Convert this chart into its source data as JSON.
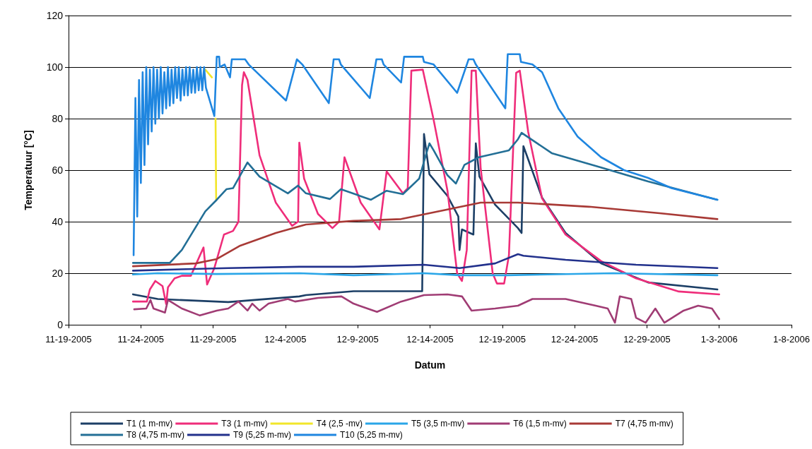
{
  "chart_data": {
    "type": "line",
    "xlabel": "Datum",
    "ylabel": "Temperatuur [°C]",
    "xlim": [
      "2005-11-19",
      "2006-01-08"
    ],
    "xticks": [
      {
        "value": "2005-11-19",
        "label": "11-19-2005"
      },
      {
        "value": "2005-11-24",
        "label": "11-24-2005"
      },
      {
        "value": "2005-11-29",
        "label": "11-29-2005"
      },
      {
        "value": "2005-12-04",
        "label": "12-4-2005"
      },
      {
        "value": "2005-12-09",
        "label": "12-9-2005"
      },
      {
        "value": "2005-12-14",
        "label": "12-14-2005"
      },
      {
        "value": "2005-12-19",
        "label": "12-19-2005"
      },
      {
        "value": "2005-12-24",
        "label": "12-24-2005"
      },
      {
        "value": "2005-12-29",
        "label": "12-29-2005"
      },
      {
        "value": "2006-01-03",
        "label": "1-3-2006"
      },
      {
        "value": "2006-01-08",
        "label": "1-8-2006"
      }
    ],
    "ylim": [
      0,
      120
    ],
    "yticks": [
      0,
      20,
      40,
      60,
      80,
      100,
      120
    ],
    "grid": "y",
    "legend": "bottom",
    "marker": "none",
    "line_style": "solid",
    "series": [
      {
        "name": "T1 (1 m-mv)",
        "color": "#1c3f66",
        "x": [
          "2005-11-23T11:00",
          "2005-11-25T04:00",
          "2005-11-30T01:00",
          "2005-12-04T23:00",
          "2005-12-05T10:00",
          "2005-12-08T17:00",
          "2005-12-13T11:00",
          "2005-12-13T14:00",
          "2005-12-13T23:00",
          "2005-12-15T05:00",
          "2005-12-15T23:00",
          "2005-12-16T01:00",
          "2005-12-16T05:00",
          "2005-12-17T00:00",
          "2005-12-17T04:00",
          "2005-12-17T10:00",
          "2005-12-18T12:00",
          "2005-12-20T02:00",
          "2005-12-20T08:00",
          "2005-12-20T11:00",
          "2005-12-21T18:00",
          "2005-12-23T09:00",
          "2005-12-25T20:00",
          "2005-12-29T02:00",
          "2006-01-02T21:00"
        ],
        "values": [
          11.8,
          10,
          8.8,
          11,
          11.5,
          13,
          13,
          74,
          58.4,
          50,
          42,
          29,
          37,
          35,
          70.4,
          57.5,
          46.6,
          37.5,
          35.6,
          69.3,
          49.3,
          35.6,
          23.8,
          16.4,
          13.7
        ]
      },
      {
        "name": "T3 (1 m-mv)",
        "color": "#ef2d7a",
        "x": [
          "2005-11-23T11:00",
          "2005-11-24T10:00",
          "2005-11-24T15:00",
          "2005-11-25T00:00",
          "2005-11-25T12:00",
          "2005-11-25T18:00",
          "2005-11-25T21:00",
          "2005-11-26T08:00",
          "2005-11-26T20:00",
          "2005-11-27T11:00",
          "2005-11-28T08:00",
          "2005-11-28T14:00",
          "2005-11-29T02:00",
          "2005-11-29T18:00",
          "2005-11-30T09:00",
          "2005-11-30T18:00",
          "2005-12-01T00:00",
          "2005-12-01T03:00",
          "2005-12-01T09:00",
          "2005-12-02T05:00",
          "2005-12-03T08:00",
          "2005-12-04T11:00",
          "2005-12-04T21:00",
          "2005-12-04T23:00",
          "2005-12-05T07:00",
          "2005-12-06T06:00",
          "2005-12-07T06:00",
          "2005-12-07T17:00",
          "2005-12-08T02:00",
          "2005-12-09T05:00",
          "2005-12-10T12:00",
          "2005-12-11T00:00",
          "2005-12-12T03:00",
          "2005-12-12T11:00",
          "2005-12-12T17:00",
          "2005-12-13T12:00",
          "2005-12-14T06:00",
          "2005-12-15T05:00",
          "2005-12-15T21:00",
          "2005-12-16T05:00",
          "2005-12-16T13:00",
          "2005-12-16T21:00",
          "2005-12-17T04:00",
          "2005-12-17T12:00",
          "2005-12-18T08:00",
          "2005-12-18T15:00",
          "2005-12-19T03:00",
          "2005-12-19T11:00",
          "2005-12-19T23:00",
          "2005-12-20T05:00",
          "2005-12-20T19:00",
          "2005-12-21T18:00",
          "2005-12-23T09:00",
          "2005-12-25T20:00",
          "2005-12-28T06:00",
          "2005-12-31T05:00",
          "2006-01-03T00:00"
        ],
        "values": [
          9,
          9,
          13.7,
          17,
          15,
          8,
          14.5,
          18,
          19,
          19,
          30,
          15.6,
          22,
          35,
          36.4,
          40,
          93,
          98,
          95,
          65.8,
          47.4,
          38.4,
          40,
          70.7,
          56.7,
          43,
          37.5,
          40,
          65,
          47.4,
          37,
          59.5,
          51,
          53,
          98.6,
          99,
          79.5,
          52,
          20,
          17,
          29,
          98.6,
          98.6,
          61,
          20,
          16,
          16,
          27,
          97.8,
          98.6,
          74.8,
          49,
          35,
          24.7,
          18,
          12.9,
          11.8
        ]
      },
      {
        "name": "T4 (2,5 -mv)",
        "color": "#f2e62a",
        "x": [
          "2005-11-28T11:00",
          "2005-11-28T22:00",
          "2005-11-29T00:00",
          "2005-11-29T04:00",
          "2005-11-29T05:00"
        ],
        "values": [
          99,
          96,
          null,
          80,
          48.5
        ]
      },
      {
        "name": "T5 (3,5 m-mv)",
        "color": "#2aa6e8",
        "x": [
          "2005-11-23T11:00",
          "2005-11-25T04:00",
          "2005-11-29T06:00",
          "2005-12-04T23:00",
          "2005-12-08T17:00",
          "2005-12-13T14:00",
          "2005-12-16T01:00",
          "2005-12-19T08:00",
          "2005-12-26T16:00",
          "2006-01-02T21:00"
        ],
        "values": [
          19.5,
          20,
          19.7,
          20,
          19.2,
          20,
          19.2,
          19.2,
          20,
          19.2
        ]
      },
      {
        "name": "T6 (1,5 m-mv)",
        "color": "#a03c74",
        "x": [
          "2005-11-23T13:00",
          "2005-11-24T09:00",
          "2005-11-24T16:00",
          "2005-11-24T21:00",
          "2005-11-25T16:00",
          "2005-11-25T21:00",
          "2005-11-26T20:00",
          "2005-11-28T02:00",
          "2005-11-29T06:00",
          "2005-11-30T01:00",
          "2005-11-30T18:00",
          "2005-12-01T09:00",
          "2005-12-01T17:00",
          "2005-12-02T05:00",
          "2005-12-02T20:00",
          "2005-12-04T04:00",
          "2005-12-04T16:00",
          "2005-12-06T06:00",
          "2005-12-07T21:00",
          "2005-12-08T17:00",
          "2005-12-10T08:00",
          "2005-12-12T00:00",
          "2005-12-13T14:00",
          "2005-12-15T05:00",
          "2005-12-16T05:00",
          "2005-12-16T21:00",
          "2005-12-18T12:00",
          "2005-12-20T02:00",
          "2005-12-21T02:00",
          "2005-12-23T09:00",
          "2005-12-25T11:00",
          "2005-12-26T07:00",
          "2005-12-26T19:00",
          "2005-12-27T03:00",
          "2005-12-27T22:00",
          "2005-12-28T06:00",
          "2005-12-28T22:00",
          "2005-12-29T14:00",
          "2005-12-30T05:00",
          "2005-12-31T13:00",
          "2006-01-01T13:00",
          "2006-01-02T12:00",
          "2006-01-03T00:00"
        ],
        "values": [
          6,
          6.3,
          9.6,
          6.3,
          4.7,
          9.6,
          6.3,
          3.6,
          5.5,
          6.3,
          9,
          5.5,
          8.2,
          5.5,
          8.2,
          10,
          9,
          10.4,
          11,
          8.2,
          5,
          9,
          11.5,
          11.8,
          11,
          5.5,
          6.3,
          7.4,
          10,
          10,
          7.4,
          6.3,
          0.8,
          11,
          10,
          2.7,
          0.8,
          6.3,
          0.8,
          5.5,
          7.4,
          6.3,
          2.2
        ]
      },
      {
        "name": "T7 (4,75 m-mv)",
        "color": "#a83a36",
        "x": [
          "2005-11-23T11:00",
          "2005-11-27T19:00",
          "2005-11-29T06:00",
          "2005-11-30T21:00",
          "2005-12-03T08:00",
          "2005-12-05T10:00",
          "2005-12-08T17:00",
          "2005-12-12T00:00",
          "2005-12-15T05:00",
          "2005-12-17T12:00",
          "2005-12-20T02:00",
          "2005-12-25T00:00",
          "2005-12-29T21:00",
          "2006-01-02T21:00"
        ],
        "values": [
          22.7,
          23.8,
          25.5,
          30.7,
          35.6,
          38.9,
          40.3,
          41,
          44.7,
          47.4,
          47.4,
          45.8,
          43.3,
          41
        ]
      },
      {
        "name": "T8 (4,75 m-mv)",
        "color": "#236f96",
        "x": [
          "2005-11-23T11:00",
          "2005-11-26T00:00",
          "2005-11-26T20:00",
          "2005-11-28T11:00",
          "2005-11-29T06:00",
          "2005-11-29T22:00",
          "2005-11-30T09:00",
          "2005-12-01T09:00",
          "2005-12-02T05:00",
          "2005-12-04T04:00",
          "2005-12-04T21:00",
          "2005-12-05T10:00",
          "2005-12-07T02:00",
          "2005-12-07T20:00",
          "2005-12-09T22:00",
          "2005-12-11T00:00",
          "2005-12-12T03:00",
          "2005-12-13T06:00",
          "2005-12-13T17:00",
          "2005-12-13T23:00",
          "2005-12-14T06:00",
          "2005-12-15T05:00",
          "2005-12-15T19:00",
          "2005-12-16T09:00",
          "2005-12-17T09:00",
          "2005-12-19T11:00",
          "2005-12-20T02:00",
          "2005-12-20T08:00",
          "2005-12-22T10:00",
          "2005-12-25T20:00",
          "2005-12-29T02:00",
          "2006-01-02T21:00"
        ],
        "values": [
          24,
          24,
          29,
          44,
          48.5,
          52.6,
          53,
          63,
          57.5,
          51,
          54,
          51,
          48.8,
          52.6,
          48.5,
          52,
          50.7,
          56.7,
          65.8,
          70.4,
          67.7,
          58,
          54.8,
          62,
          65,
          67.7,
          72,
          74.5,
          66.6,
          61,
          55.6,
          48.5
        ]
      },
      {
        "name": "T9 (5,25 m-mv)",
        "color": "#22318c",
        "x": [
          "2005-11-23T11:00",
          "2005-11-30T01:00",
          "2005-12-04T23:00",
          "2005-12-08T17:00",
          "2005-12-13T14:00",
          "2005-12-16T01:00",
          "2005-12-18T12:00",
          "2005-12-20T02:00",
          "2005-12-20T11:00",
          "2005-12-23T09:00",
          "2005-12-28T06:00",
          "2006-01-02T21:00"
        ],
        "values": [
          21,
          22,
          22.5,
          22.5,
          23.3,
          22,
          23.8,
          27.4,
          26.8,
          25.2,
          23.3,
          22
        ]
      },
      {
        "name": "T10 (5,25 m-mv)",
        "color": "#1f86e0",
        "x": [
          "2005-11-23T12:00",
          "2005-11-23T15:00",
          "2005-11-23T18:00",
          "2005-11-23T21:00",
          "2005-11-24T00:00",
          "2005-11-24T03:00",
          "2005-11-24T06:00",
          "2005-11-24T09:00",
          "2005-11-24T12:00",
          "2005-11-24T15:00",
          "2005-11-24T18:00",
          "2005-11-24T21:00",
          "2005-11-25T00:00",
          "2005-11-25T03:00",
          "2005-11-25T06:00",
          "2005-11-25T09:00",
          "2005-11-25T12:00",
          "2005-11-25T15:00",
          "2005-11-25T18:00",
          "2005-11-25T21:00",
          "2005-11-26T00:00",
          "2005-11-26T03:00",
          "2005-11-26T06:00",
          "2005-11-26T09:00",
          "2005-11-26T12:00",
          "2005-11-26T15:00",
          "2005-11-26T18:00",
          "2005-11-26T21:00",
          "2005-11-27T00:00",
          "2005-11-27T03:00",
          "2005-11-27T06:00",
          "2005-11-27T09:00",
          "2005-11-27T12:00",
          "2005-11-27T15:00",
          "2005-11-27T18:00",
          "2005-11-27T21:00",
          "2005-11-28T00:00",
          "2005-11-28T03:00",
          "2005-11-28T06:00",
          "2005-11-28T09:00",
          "2005-11-28T12:00",
          "2005-11-29T02:00",
          "2005-11-29T06:00",
          "2005-11-29T10:00",
          "2005-11-29T11:00",
          "2005-11-29T19:00",
          "2005-11-30T04:00",
          "2005-11-30T07:00",
          "2005-12-01T05:00",
          "2005-12-01T11:00",
          "2005-12-04T01:00",
          "2005-12-04T19:00",
          "2005-12-05T04:00",
          "2005-12-07T00:00",
          "2005-12-07T08:00",
          "2005-12-07T17:00",
          "2005-12-07T20:00",
          "2005-12-09T20:00",
          "2005-12-10T07:00",
          "2005-12-10T16:00",
          "2005-12-10T19:00",
          "2005-12-12T00:00",
          "2005-12-12T05:00",
          "2005-12-13T12:00",
          "2005-12-13T14:00",
          "2005-12-14T06:00",
          "2005-12-15T21:00",
          "2005-12-16T16:00",
          "2005-12-17T00:00",
          "2005-12-17T04:00",
          "2005-12-19T05:00",
          "2005-12-19T09:00",
          "2005-12-20T05:00",
          "2005-12-20T07:00",
          "2005-12-21T02:00",
          "2005-12-21T18:00",
          "2005-12-22T21:00",
          "2005-12-24T05:00",
          "2005-12-25T20:00",
          "2005-12-27T10:00",
          "2005-12-29T02:00",
          "2005-12-30T17:00",
          "2006-01-02T21:00"
        ],
        "values": [
          27,
          88,
          42,
          95,
          55,
          98,
          62,
          100,
          70,
          99,
          75,
          100,
          78,
          99,
          80,
          100,
          82,
          98,
          84,
          100,
          85,
          99,
          86,
          100,
          88,
          100,
          87,
          99,
          89,
          100,
          89,
          100,
          90,
          99,
          90,
          100,
          91,
          100,
          91,
          100,
          92,
          81,
          104,
          104,
          100,
          101,
          96,
          103,
          103,
          101,
          87,
          103,
          101,
          86,
          103,
          103,
          101,
          88,
          103,
          103,
          101,
          94,
          104,
          104,
          102,
          101,
          90,
          103,
          103,
          101,
          84,
          105,
          105,
          102,
          101,
          98,
          84,
          73,
          65,
          60,
          57,
          53,
          48.5
        ]
      }
    ]
  }
}
